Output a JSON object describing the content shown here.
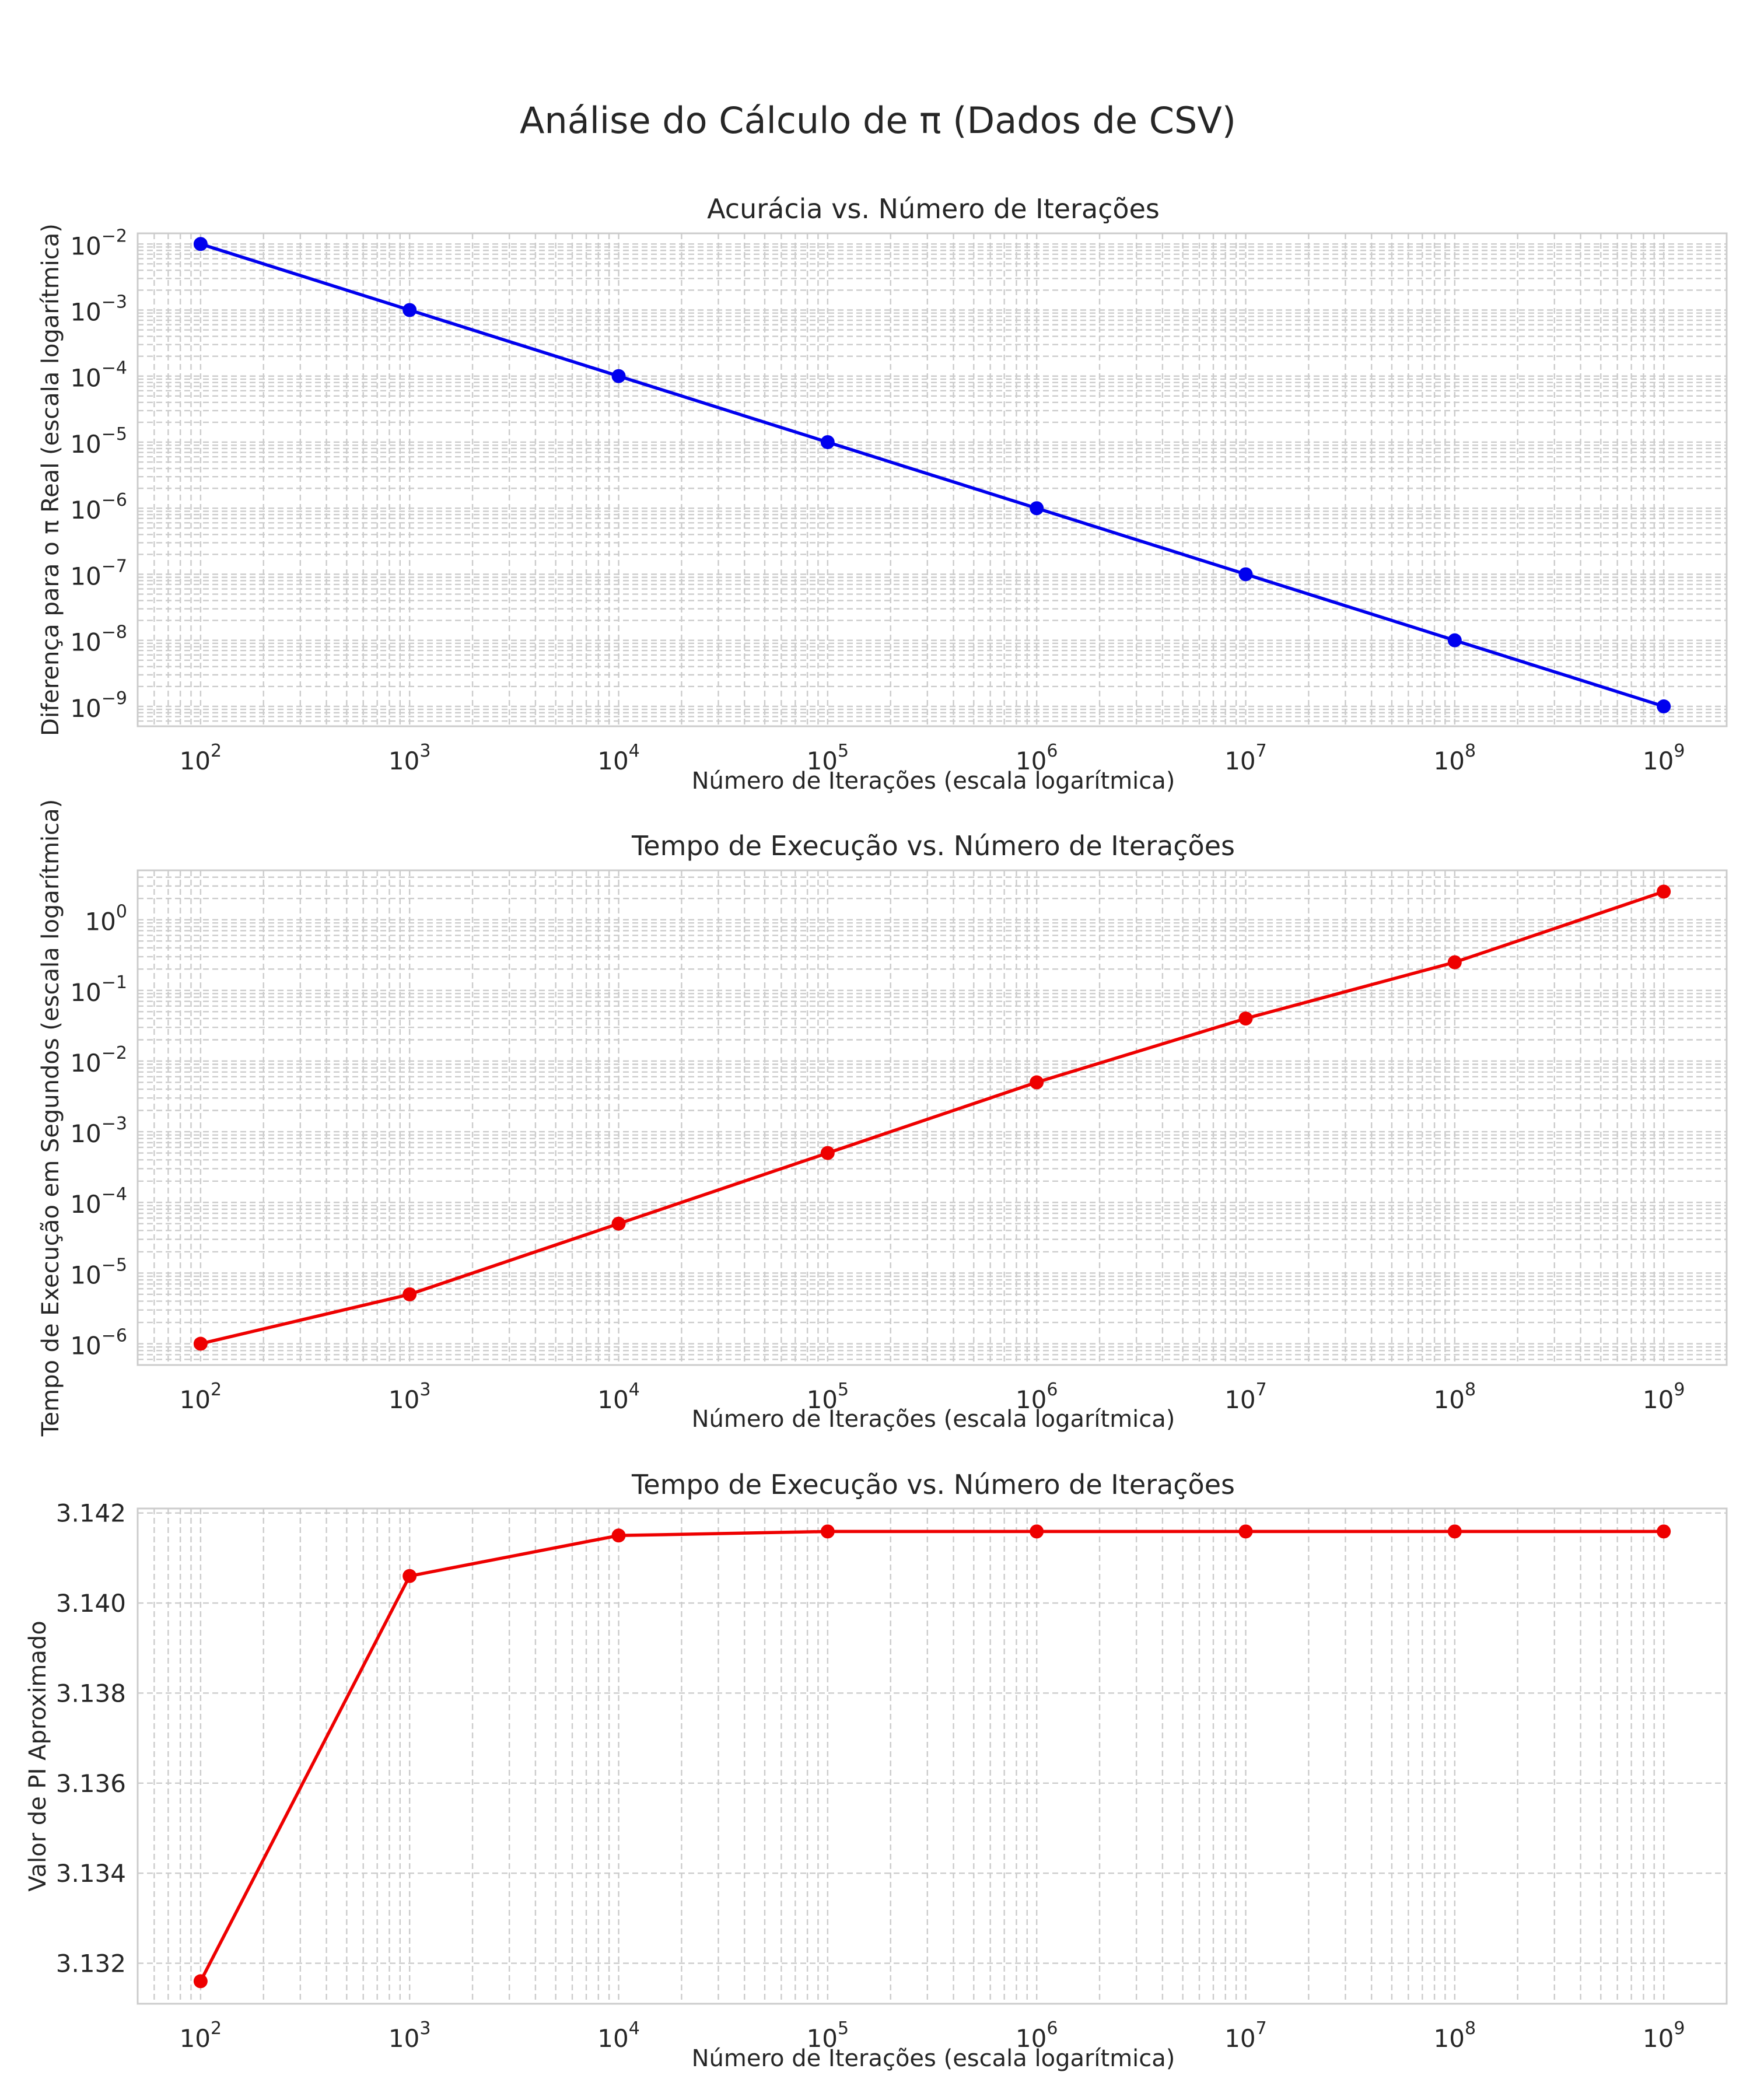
{
  "figure": {
    "title": "Análise do Cálculo de π (Dados de CSV)"
  },
  "chart_data": [
    {
      "type": "line",
      "title": "Acurácia vs. Número de Iterações",
      "xlabel": "Número de Iterações (escala logarítmica)",
      "ylabel": "Diferença para o π Real (escala logarítmica)",
      "xscale": "log",
      "yscale": "log",
      "xlim": [
        50,
        2000000000
      ],
      "ylim": [
        5e-10,
        0.0145
      ],
      "x_ticks": [
        2,
        3,
        4,
        5,
        6,
        7,
        8,
        9
      ],
      "y_ticks": [
        -9,
        -8,
        -7,
        -6,
        -5,
        -4,
        -3,
        -2
      ],
      "grid": "major and minor, dashed",
      "marker": "circle",
      "color": "#0000ee",
      "series": [
        {
          "x": [
            100,
            1000,
            10000,
            100000,
            1000000,
            10000000,
            100000000,
            1000000000
          ],
          "y": [
            0.01,
            0.001,
            0.0001,
            1e-05,
            1e-06,
            1e-07,
            1e-08,
            1e-09
          ]
        }
      ]
    },
    {
      "type": "line",
      "title": "Tempo de Execução vs. Número de Iterações",
      "xlabel": "Número de Iterações (escala logarítmica)",
      "ylabel": "Tempo de Execução em Segundos (escala logarítmica)",
      "xscale": "log",
      "yscale": "log",
      "xlim": [
        50,
        2000000000
      ],
      "ylim": [
        5e-07,
        5
      ],
      "x_ticks": [
        2,
        3,
        4,
        5,
        6,
        7,
        8,
        9
      ],
      "y_ticks": [
        -6,
        -5,
        -4,
        -3,
        -2,
        -1,
        0
      ],
      "grid": "major and minor, dashed",
      "marker": "circle",
      "color": "#ee0000",
      "series": [
        {
          "x": [
            100,
            1000,
            10000,
            100000,
            1000000,
            10000000,
            100000000,
            1000000000
          ],
          "y": [
            1e-06,
            5e-06,
            5e-05,
            0.0005,
            0.005,
            0.04,
            0.25,
            2.5
          ]
        }
      ]
    },
    {
      "type": "line",
      "title": "Tempo de Execução vs. Número de Iterações",
      "xlabel": "Número de Iterações (escala logarítmica)",
      "ylabel": "Valor de PI Aproximado",
      "xscale": "log",
      "yscale": "linear",
      "xlim": [
        50,
        2000000000
      ],
      "ylim": [
        3.1311,
        3.1421
      ],
      "x_ticks": [
        2,
        3,
        4,
        5,
        6,
        7,
        8,
        9
      ],
      "y_ticks": [
        "3.132",
        "3.134",
        "3.136",
        "3.138",
        "3.140",
        "3.142"
      ],
      "grid": "major and minor, dashed",
      "marker": "circle",
      "color": "#ee0000",
      "series": [
        {
          "x": [
            100,
            1000,
            10000,
            100000,
            1000000,
            10000000,
            100000000,
            1000000000
          ],
          "y": [
            3.1316,
            3.1406,
            3.1415,
            3.14159,
            3.14159,
            3.14159,
            3.14159,
            3.14159
          ]
        }
      ]
    }
  ]
}
